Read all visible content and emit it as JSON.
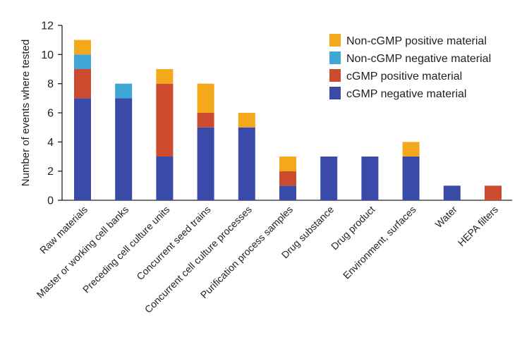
{
  "chart_data": {
    "type": "bar",
    "stacked": true,
    "ylabel": "Number of events where tested",
    "xlabel": "",
    "ylim": [
      0,
      12
    ],
    "yticks": [
      "0",
      "2",
      "4",
      "6",
      "8",
      "10",
      "12"
    ],
    "categories": [
      "Raw materials",
      "Master or working cell banks",
      "Preceding cell culture units",
      "Concurrent seed trains",
      "Concurrent cell culture processes",
      "Purification process samples",
      "Drug substance",
      "Drug product",
      "Environment, surfaces",
      "Water",
      "HEPA filters"
    ],
    "series": [
      {
        "name": "cGMP negative material",
        "color": "#3a4aa8",
        "values": [
          7,
          7,
          3,
          5,
          5,
          1,
          3,
          3,
          3,
          1,
          0
        ]
      },
      {
        "name": "cGMP positive material",
        "color": "#cc4a2e",
        "values": [
          2,
          0,
          5,
          1,
          0,
          1,
          0,
          0,
          0,
          0,
          1
        ]
      },
      {
        "name": "Non-cGMP negative material",
        "color": "#3fa6d8",
        "values": [
          1,
          1,
          0,
          0,
          0,
          0,
          0,
          0,
          0,
          0,
          0
        ]
      },
      {
        "name": "Non-cGMP positive material",
        "color": "#f4a81c",
        "values": [
          1,
          0,
          1,
          2,
          1,
          1,
          0,
          0,
          1,
          0,
          0
        ]
      }
    ],
    "legend_order": [
      "Non-cGMP positive material",
      "Non-cGMP negative material",
      "cGMP positive material",
      "cGMP negative material"
    ],
    "legend_position": "top-right",
    "grid": false
  }
}
